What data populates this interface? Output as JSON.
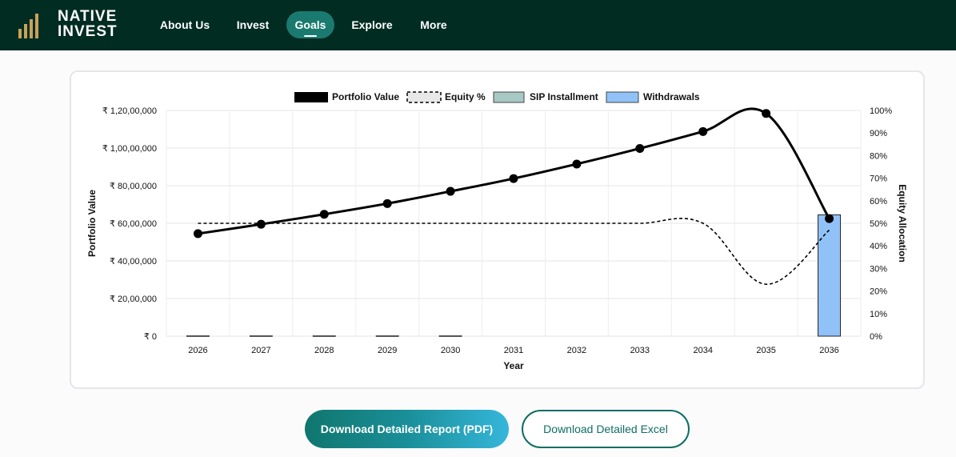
{
  "brand": {
    "line1": "NATIVE",
    "line2": "INVEST",
    "logo_color": "#c8a25a"
  },
  "nav": {
    "items": [
      {
        "label": "About Us",
        "active": false
      },
      {
        "label": "Invest",
        "active": false
      },
      {
        "label": "Goals",
        "active": true
      },
      {
        "label": "Explore",
        "active": false
      },
      {
        "label": "More",
        "active": false
      }
    ]
  },
  "actions": {
    "pdf_label": "Download Detailed Report (PDF)",
    "excel_label": "Download Detailed Excel"
  },
  "chart_data": {
    "type": "bar",
    "xlabel": "Year",
    "ylabel_left": "Portfolio Value",
    "ylabel_right": "Equity Allocation",
    "categories": [
      "2026",
      "2027",
      "2028",
      "2029",
      "2030",
      "2031",
      "2032",
      "2033",
      "2034",
      "2035",
      "2036"
    ],
    "y_left": {
      "min": 0,
      "max": 12000000,
      "ticks": [
        0,
        2000000,
        4000000,
        6000000,
        8000000,
        10000000,
        12000000
      ],
      "tick_labels": [
        "₹ 0",
        "₹ 20,00,000",
        "₹ 40,00,000",
        "₹ 60,00,000",
        "₹ 80,00,000",
        "₹ 1,00,00,000",
        "₹ 1,20,00,000"
      ]
    },
    "y_right": {
      "min": 0,
      "max": 100,
      "ticks": [
        0,
        10,
        20,
        30,
        40,
        50,
        60,
        70,
        80,
        90,
        100
      ],
      "tick_labels": [
        "0%",
        "10%",
        "20%",
        "30%",
        "40%",
        "50%",
        "60%",
        "70%",
        "80%",
        "90%",
        "100%"
      ]
    },
    "grid": true,
    "legend_position": "top-center",
    "legend": [
      {
        "label": "Portfolio Value",
        "swatch": "solid-black"
      },
      {
        "label": "Equity %",
        "swatch": "dashed"
      },
      {
        "label": "SIP Installment",
        "swatch": "#a8c8c4"
      },
      {
        "label": "Withdrawals",
        "swatch": "#90c2f8"
      }
    ],
    "series": [
      {
        "name": "Portfolio Value",
        "kind": "line",
        "axis": "left",
        "color": "#000000",
        "values": [
          5450000,
          5950000,
          6480000,
          7050000,
          7700000,
          8380000,
          9150000,
          9980000,
          10880000,
          11840000,
          6250000
        ]
      },
      {
        "name": "Equity %",
        "kind": "line-dashed",
        "axis": "right",
        "color": "#000000",
        "values": [
          50,
          50,
          50,
          50,
          50,
          50,
          50,
          50,
          50,
          23,
          47
        ]
      },
      {
        "name": "SIP Installment",
        "kind": "bar",
        "axis": "left",
        "color": "#a8c8c4",
        "values": [
          24000,
          24000,
          24000,
          24000,
          24000,
          0,
          0,
          0,
          0,
          0,
          0
        ]
      },
      {
        "name": "Withdrawals",
        "kind": "bar",
        "axis": "left",
        "color": "#90c2f8",
        "values": [
          0,
          0,
          0,
          0,
          0,
          0,
          0,
          0,
          0,
          0,
          6450000
        ]
      }
    ]
  }
}
